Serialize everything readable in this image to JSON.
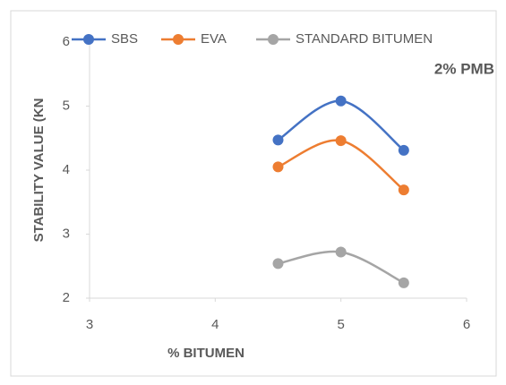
{
  "chart_data": {
    "type": "line",
    "smooth": true,
    "x_label": "% BITUMEN",
    "y_label": "STABILITY VALUE (KN",
    "annotation": "2% PMB",
    "x": [
      4.5,
      5,
      5.5
    ],
    "series": [
      {
        "name": "SBS",
        "color": "#4472c4",
        "values": [
          4.47,
          5.08,
          4.31
        ]
      },
      {
        "name": "EVA",
        "color": "#ed7d31",
        "values": [
          4.05,
          4.46,
          3.69
        ]
      },
      {
        "name": "STANDARD BITUMEN",
        "color": "#a5a5a5",
        "values": [
          2.54,
          2.72,
          2.24
        ]
      }
    ],
    "xlim": [
      3,
      6
    ],
    "xticks": [
      3,
      4,
      5,
      6
    ],
    "ylim": [
      2,
      6
    ],
    "yticks": [
      2,
      3,
      4,
      5,
      6
    ],
    "legend": "top"
  }
}
